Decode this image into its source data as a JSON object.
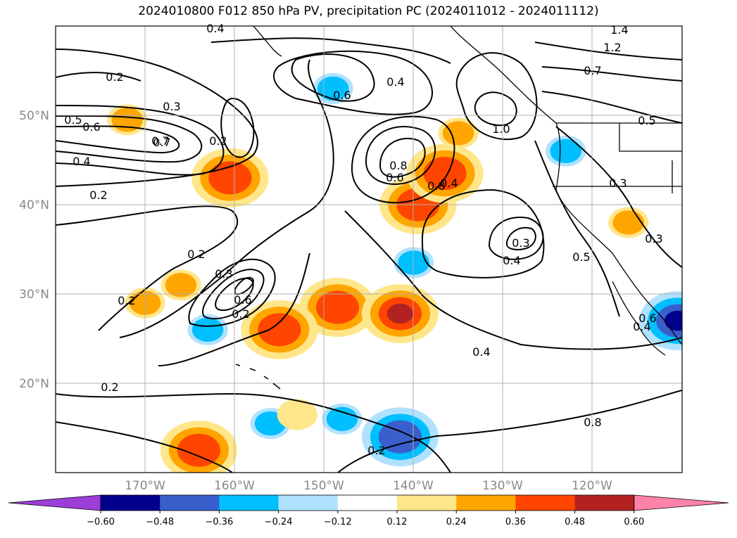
{
  "title": "2024010800 F012 850 hPa PV, precipitation PC (2024011012 - 2024011112)",
  "map": {
    "lon_range": [
      180,
      110
    ],
    "lat_range": [
      10,
      60
    ],
    "lat_labels": [
      "20°N",
      "30°N",
      "40°N",
      "50°N"
    ],
    "lon_labels": [
      "170°W",
      "160°W",
      "150°W",
      "140°W",
      "130°W",
      "120°W"
    ],
    "grid": true,
    "contour_labels": [
      "0.4",
      "0.2",
      "0.5",
      "0.6",
      "0.3",
      "0.7",
      "0.4",
      "0.2",
      "0.2",
      "0.6",
      "0.4",
      "0.8",
      "0.6",
      "0.4",
      "0.8",
      "1.0",
      "1.2",
      "1.4",
      "0.7",
      "0.5",
      "0.3",
      "0.3",
      "0.4",
      "0.5",
      "0.3",
      "0.2",
      "0.2",
      "0.7",
      "0.6",
      "0.2",
      "0.3",
      "0.4",
      "0.2",
      "0.2",
      "0.8",
      "0.4",
      "0.6"
    ],
    "precip_blobs": [
      {
        "lon": -148.5,
        "lat": 28.5,
        "level": 0.36
      },
      {
        "lon": -141.5,
        "lat": 27.8,
        "level": 0.48
      },
      {
        "lon": -139.5,
        "lat": 40,
        "level": 0.36
      },
      {
        "lon": -136.5,
        "lat": 43.5,
        "level": 0.36
      },
      {
        "lon": -166,
        "lat": 31,
        "level": 0.24
      },
      {
        "lon": -170,
        "lat": 29,
        "level": 0.24
      },
      {
        "lon": -164,
        "lat": 12.5,
        "level": 0.36
      },
      {
        "lon": -160.5,
        "lat": 43,
        "level": 0.36
      },
      {
        "lon": -172,
        "lat": 49.5,
        "level": 0.24
      },
      {
        "lon": -149,
        "lat": 53,
        "level": -0.24
      },
      {
        "lon": -140,
        "lat": 33.5,
        "level": -0.24
      },
      {
        "lon": -141.5,
        "lat": 14,
        "level": -0.36
      },
      {
        "lon": -156,
        "lat": 15.5,
        "level": -0.24
      },
      {
        "lon": -110.5,
        "lat": 27,
        "level": -0.48
      },
      {
        "lon": -148,
        "lat": 16,
        "level": -0.24
      },
      {
        "lon": -123,
        "lat": 46,
        "level": -0.24
      },
      {
        "lon": -135,
        "lat": 48,
        "level": 0.24
      },
      {
        "lon": -163,
        "lat": 26,
        "level": -0.24
      },
      {
        "lon": -155,
        "lat": 26,
        "level": 0.36
      },
      {
        "lon": -153,
        "lat": 16.5,
        "level": 0.12
      },
      {
        "lon": -116,
        "lat": 38,
        "level": 0.24
      }
    ]
  },
  "colorbar": {
    "ticks": [
      "−0.60",
      "−0.48",
      "−0.36",
      "−0.24",
      "−0.12",
      "0.12",
      "0.24",
      "0.36",
      "0.48",
      "0.60"
    ],
    "colors": [
      "#9b3fd6",
      "#00008b",
      "#3a5fcd",
      "#00bfff",
      "#b0e2ff",
      "#ffffff",
      "#ffe68a",
      "#ffa500",
      "#ff4500",
      "#b22222",
      "#ff83a8"
    ]
  }
}
